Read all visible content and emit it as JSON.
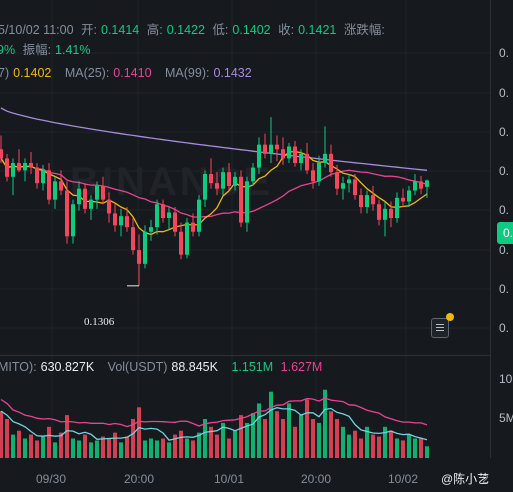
{
  "ohlc": {
    "date_text": "5/10/02 11:00",
    "open_label": "开:",
    "open_value": "0.1414",
    "high_label": "高:",
    "high_value": "0.1422",
    "low_label": "低:",
    "low_value": "0.1402",
    "close_label": "收:",
    "close_value": "0.1421",
    "change_label": "涨跌幅:",
    "change_value_partial": "9%",
    "amp_label": "振幅:",
    "amp_value": "1.41%"
  },
  "ma": {
    "ma7_label": "7)",
    "ma7_value": "0.1402",
    "ma25_label": "MA(25):",
    "ma25_value": "0.1410",
    "ma99_label": "MA(99):",
    "ma99_value": "0.1432"
  },
  "volume": {
    "label1": "MITO):",
    "value1": "630.827K",
    "label2": "Vol(USDT)",
    "value2": "88.845K",
    "ma1_value": "1.151M",
    "ma2_value": "1.627M"
  },
  "y_axis": [
    "0.",
    "0.",
    "0.",
    "0.",
    "0.",
    "0.",
    "0.",
    "0."
  ],
  "vol_axis": [
    "10",
    "5M"
  ],
  "x_axis": [
    "09/30",
    "20:00",
    "10/01",
    "20:00",
    "10/02"
  ],
  "x_axis_partial": "2",
  "current_price_tag": "0.",
  "low_marker": "0.1306",
  "watermark": "BINANCE",
  "credit": "@陈小艺",
  "colors": {
    "up": "#0ecb81",
    "down": "#f6465d",
    "ma7": "#f0b90b",
    "ma25": "#e84393",
    "ma99": "#a98adf"
  },
  "chart_data": {
    "type": "candlestick",
    "note_units": "price in USDT",
    "candles": [
      [
        0.1455,
        0.147,
        0.144,
        0.1445
      ],
      [
        0.1445,
        0.145,
        0.142,
        0.1425
      ],
      [
        0.1425,
        0.1445,
        0.1405,
        0.144
      ],
      [
        0.144,
        0.1455,
        0.143,
        0.1432
      ],
      [
        0.1432,
        0.1445,
        0.142,
        0.144
      ],
      [
        0.144,
        0.1452,
        0.1428,
        0.1435
      ],
      [
        0.1435,
        0.144,
        0.1412,
        0.1418
      ],
      [
        0.1418,
        0.1438,
        0.141,
        0.1432
      ],
      [
        0.1432,
        0.144,
        0.1395,
        0.14
      ],
      [
        0.14,
        0.1425,
        0.139,
        0.142
      ],
      [
        0.142,
        0.1432,
        0.1405,
        0.141
      ],
      [
        0.141,
        0.142,
        0.1352,
        0.136
      ],
      [
        0.136,
        0.14,
        0.1352,
        0.1395
      ],
      [
        0.1395,
        0.142,
        0.1388,
        0.1412
      ],
      [
        0.1412,
        0.1418,
        0.1385,
        0.139
      ],
      [
        0.139,
        0.1405,
        0.1378,
        0.14
      ],
      [
        0.14,
        0.142,
        0.139,
        0.1415
      ],
      [
        0.1415,
        0.1425,
        0.1395,
        0.14
      ],
      [
        0.14,
        0.1408,
        0.1375,
        0.1385
      ],
      [
        0.1385,
        0.1395,
        0.1365,
        0.1372
      ],
      [
        0.1372,
        0.139,
        0.136,
        0.1382
      ],
      [
        0.1382,
        0.1392,
        0.1365,
        0.137
      ],
      [
        0.137,
        0.138,
        0.134,
        0.1345
      ],
      [
        0.1345,
        0.1362,
        0.1306,
        0.133
      ],
      [
        0.133,
        0.1372,
        0.1325,
        0.1365
      ],
      [
        0.1365,
        0.1378,
        0.1355,
        0.137
      ],
      [
        0.137,
        0.14,
        0.1362,
        0.1395
      ],
      [
        0.1395,
        0.14,
        0.1375,
        0.138
      ],
      [
        0.138,
        0.1392,
        0.1368,
        0.1386
      ],
      [
        0.1386,
        0.1392,
        0.136,
        0.1365
      ],
      [
        0.1365,
        0.1375,
        0.1335,
        0.134
      ],
      [
        0.134,
        0.138,
        0.1336,
        0.1375
      ],
      [
        0.1375,
        0.1385,
        0.136,
        0.1365
      ],
      [
        0.1365,
        0.1405,
        0.136,
        0.14
      ],
      [
        0.14,
        0.1432,
        0.1392,
        0.1428
      ],
      [
        0.1428,
        0.1445,
        0.1412,
        0.1418
      ],
      [
        0.1418,
        0.143,
        0.1405,
        0.1412
      ],
      [
        0.1412,
        0.1435,
        0.1405,
        0.143
      ],
      [
        0.143,
        0.144,
        0.141,
        0.1415
      ],
      [
        0.1415,
        0.143,
        0.141,
        0.1425
      ],
      [
        0.1425,
        0.1432,
        0.137,
        0.1375
      ],
      [
        0.1375,
        0.1425,
        0.1365,
        0.142
      ],
      [
        0.142,
        0.144,
        0.1415,
        0.1435
      ],
      [
        0.1435,
        0.1468,
        0.1428,
        0.146
      ],
      [
        0.146,
        0.1472,
        0.1445,
        0.145
      ],
      [
        0.145,
        0.149,
        0.144,
        0.146
      ],
      [
        0.146,
        0.147,
        0.1442,
        0.1455
      ],
      [
        0.1455,
        0.1468,
        0.1438,
        0.1445
      ],
      [
        0.1445,
        0.1462,
        0.144,
        0.1458
      ],
      [
        0.1458,
        0.1464,
        0.1436,
        0.144
      ],
      [
        0.144,
        0.1455,
        0.1432,
        0.145
      ],
      [
        0.145,
        0.1462,
        0.1428,
        0.1432
      ],
      [
        0.1432,
        0.144,
        0.1412,
        0.142
      ],
      [
        0.142,
        0.1448,
        0.1415,
        0.144
      ],
      [
        0.144,
        0.148,
        0.1435,
        0.145
      ],
      [
        0.145,
        0.146,
        0.1425,
        0.143
      ],
      [
        0.143,
        0.1438,
        0.1405,
        0.1412
      ],
      [
        0.1412,
        0.1425,
        0.14,
        0.1418
      ],
      [
        0.1418,
        0.1428,
        0.1408,
        0.1422
      ],
      [
        0.1422,
        0.1428,
        0.14,
        0.1405
      ],
      [
        0.1405,
        0.1412,
        0.1385,
        0.1392
      ],
      [
        0.1392,
        0.141,
        0.1385,
        0.1405
      ],
      [
        0.1405,
        0.1415,
        0.1388,
        0.1395
      ],
      [
        0.1395,
        0.14,
        0.1372,
        0.1378
      ],
      [
        0.1378,
        0.1398,
        0.136,
        0.139
      ],
      [
        0.139,
        0.1398,
        0.137,
        0.138
      ],
      [
        0.138,
        0.1408,
        0.1375,
        0.1402
      ],
      [
        0.1402,
        0.1412,
        0.1392,
        0.1398
      ],
      [
        0.1398,
        0.1415,
        0.1392,
        0.141
      ],
      [
        0.141,
        0.1428,
        0.1405,
        0.142
      ],
      [
        0.142,
        0.1426,
        0.1406,
        0.1412
      ],
      [
        0.1414,
        0.1422,
        0.1402,
        0.1421
      ]
    ],
    "volumes": [
      2.4,
      2.0,
      1.2,
      1.4,
      1.0,
      1.2,
      0.9,
      1.1,
      1.6,
      0.8,
      1.3,
      2.2,
      1.0,
      0.9,
      1.2,
      0.8,
      0.9,
      1.1,
      1.0,
      1.3,
      0.8,
      1.1,
      2.0,
      2.6,
      0.9,
      1.0,
      0.9,
      1.0,
      0.8,
      1.2,
      1.4,
      1.0,
      0.9,
      1.3,
      2.0,
      1.6,
      1.2,
      1.8,
      1.0,
      1.4,
      2.2,
      1.8,
      2.3,
      2.8,
      2.0,
      3.4,
      2.4,
      2.0,
      2.8,
      1.6,
      2.2,
      3.0,
      2.0,
      1.8,
      3.5,
      2.4,
      2.0,
      1.6,
      1.2,
      1.4,
      1.0,
      1.6,
      1.2,
      1.1,
      1.6,
      1.4,
      1.0,
      0.9,
      1.2,
      1.0,
      1.0,
      0.6
    ]
  }
}
